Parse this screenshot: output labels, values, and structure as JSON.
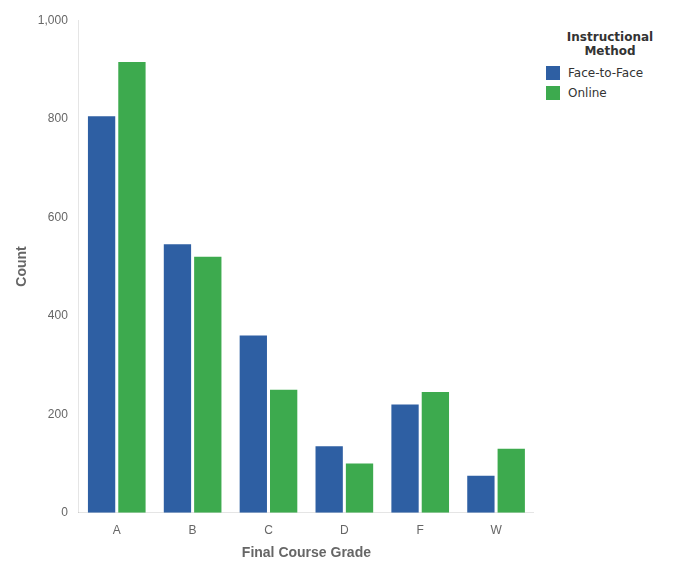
{
  "chart_data": {
    "type": "bar",
    "xlabel": "Final Course Grade",
    "ylabel": "Count",
    "categories": [
      "A",
      "B",
      "C",
      "D",
      "F",
      "W"
    ],
    "series": [
      {
        "name": "Face-to-Face",
        "color": "#2E5FA3",
        "values": [
          805,
          545,
          360,
          135,
          220,
          75
        ]
      },
      {
        "name": "Online",
        "color": "#3DAA4E",
        "values": [
          915,
          520,
          250,
          100,
          245,
          130
        ]
      }
    ],
    "legend_title": "Instructional\nMethod",
    "legend": "right",
    "ylim": [
      0,
      1000
    ],
    "yticks": [
      0,
      200,
      400,
      600,
      800,
      {
        "value": 1000,
        "label": "1,000"
      }
    ],
    "grid": false
  }
}
